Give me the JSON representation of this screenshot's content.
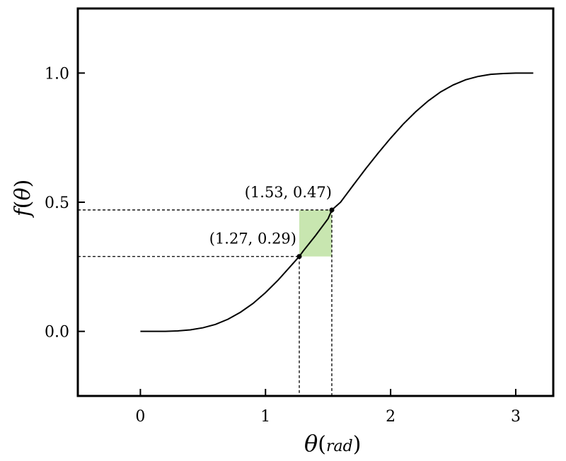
{
  "chart_data": {
    "type": "line",
    "title": "",
    "xlabel_symbol": "θ",
    "xlabel_unit": "rad",
    "ylabel_f": "f",
    "ylabel_symbol": "θ",
    "xlim": [
      -0.5,
      3.3
    ],
    "ylim": [
      -0.25,
      1.25
    ],
    "xticks": [
      0,
      1,
      2,
      3
    ],
    "xtick_labels": [
      "0",
      "1",
      "2",
      "3"
    ],
    "yticks": [
      0.0,
      0.5,
      1.0
    ],
    "ytick_labels": [
      "0.0",
      "0.5",
      "1.0"
    ],
    "grid": false,
    "series": [
      {
        "color": "#000000",
        "x": [
          0,
          0.1,
          0.2,
          0.3,
          0.4,
          0.5,
          0.6,
          0.7,
          0.8,
          0.9,
          1.0,
          1.1,
          1.2,
          1.27,
          1.3,
          1.4,
          1.5,
          1.53,
          1.6,
          1.7,
          1.8,
          1.9,
          2.0,
          2.1,
          2.2,
          2.3,
          2.4,
          2.5,
          2.6,
          2.7,
          2.8,
          2.9,
          3.0,
          3.1,
          3.14
        ],
        "y": [
          0.0,
          0.0,
          0.0,
          0.002,
          0.006,
          0.014,
          0.027,
          0.047,
          0.074,
          0.108,
          0.15,
          0.198,
          0.252,
          0.29,
          0.31,
          0.371,
          0.436,
          0.47,
          0.5,
          0.565,
          0.629,
          0.69,
          0.748,
          0.802,
          0.85,
          0.892,
          0.927,
          0.954,
          0.974,
          0.987,
          0.995,
          0.998,
          1.0,
          1.0,
          1.0
        ]
      }
    ],
    "highlight_region": {
      "x": [
        1.27,
        1.53
      ],
      "y": [
        0.29,
        0.47
      ],
      "color": "#c8e6b0"
    },
    "points": [
      {
        "x": 1.27,
        "y": 0.29,
        "label": "(1.27, 0.29)"
      },
      {
        "x": 1.53,
        "y": 0.47,
        "label": "(1.53, 0.47)"
      }
    ]
  }
}
